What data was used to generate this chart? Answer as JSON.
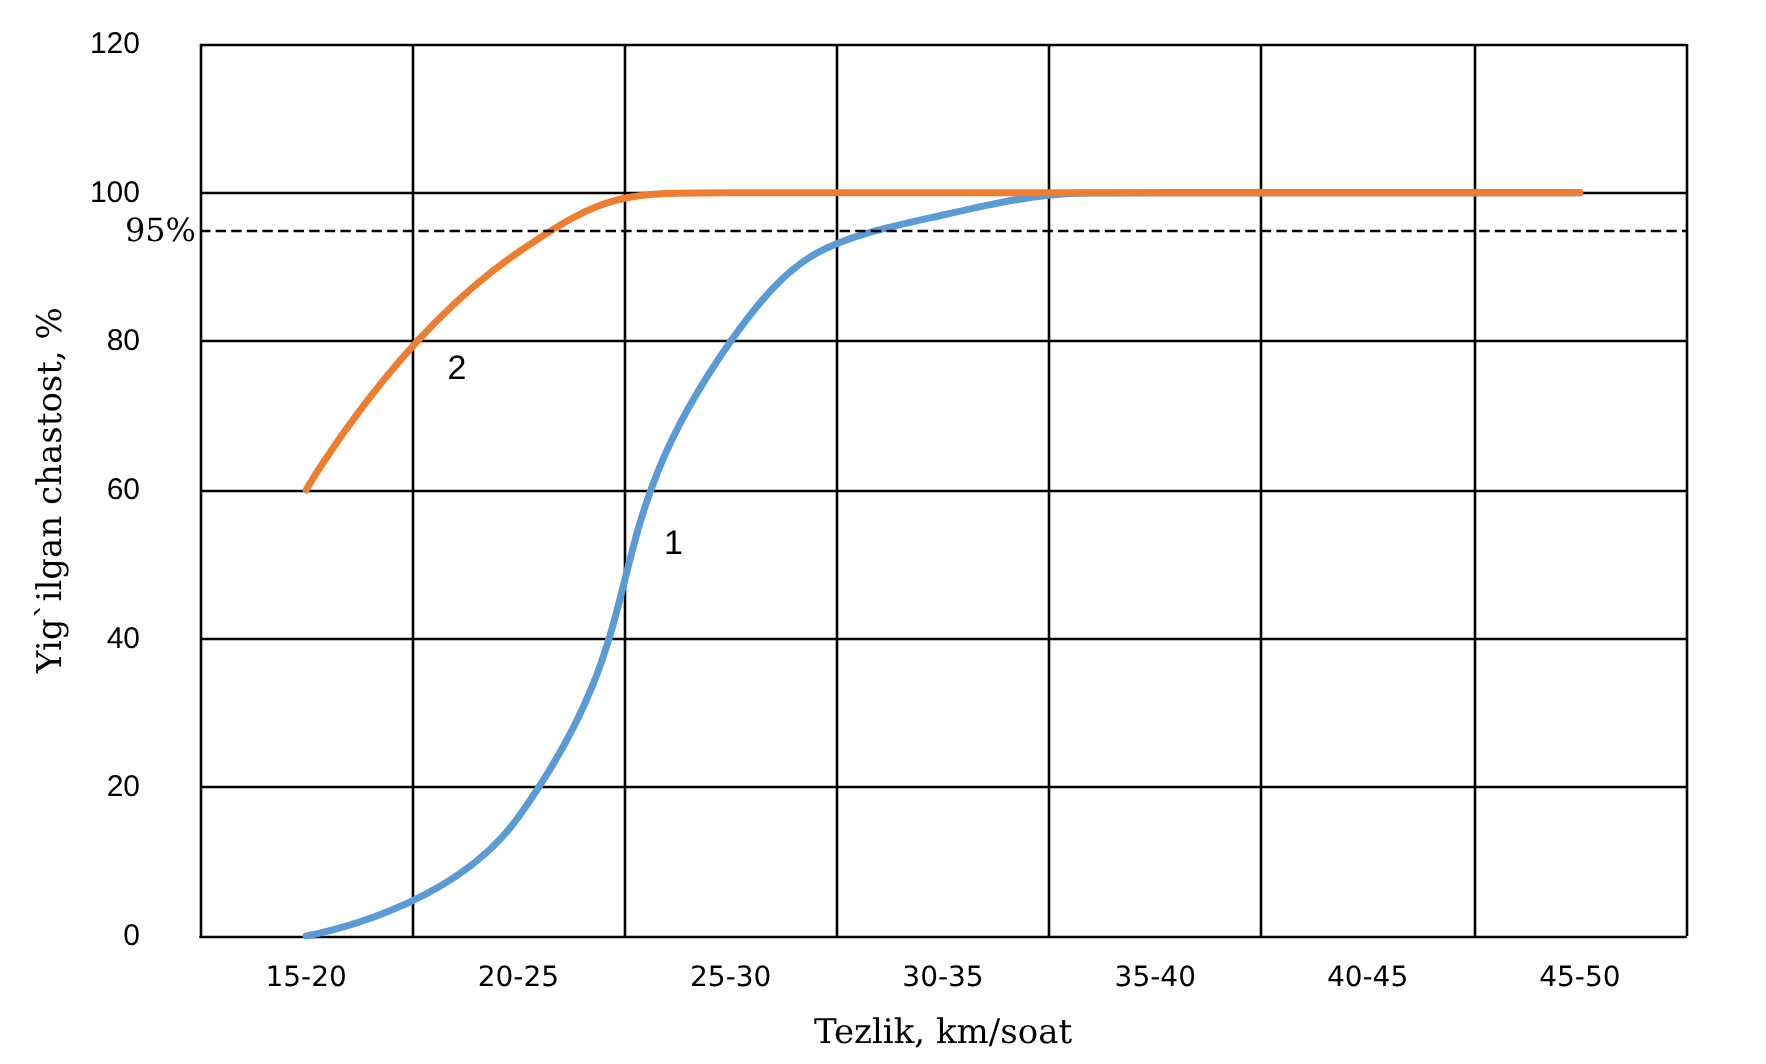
{
  "chart_data": {
    "type": "line",
    "xlabel": "Tezlik, km/soat",
    "ylabel": "Yig`ilgan chastost, %",
    "categories": [
      "15-20",
      "20-25",
      "25-30",
      "30-35",
      "35-40",
      "40-45",
      "45-50"
    ],
    "series": [
      {
        "name": "1",
        "color": "#5b9bd5",
        "values": [
          0,
          16,
          80,
          97,
          100,
          100,
          100
        ]
      },
      {
        "name": "2",
        "color": "#ed7d31",
        "values": [
          60,
          92,
          100,
          100,
          100,
          100,
          100
        ]
      }
    ],
    "ylim": [
      0,
      120
    ],
    "yticks": [
      0,
      20,
      40,
      60,
      80,
      100,
      120
    ],
    "grid": true,
    "legend": false,
    "marker": "none",
    "line_style": "solid",
    "ref_lines": [
      {
        "axis": "y",
        "value": 95,
        "label": "95%",
        "line_style": "dashed",
        "color": "#000000"
      }
    ]
  }
}
